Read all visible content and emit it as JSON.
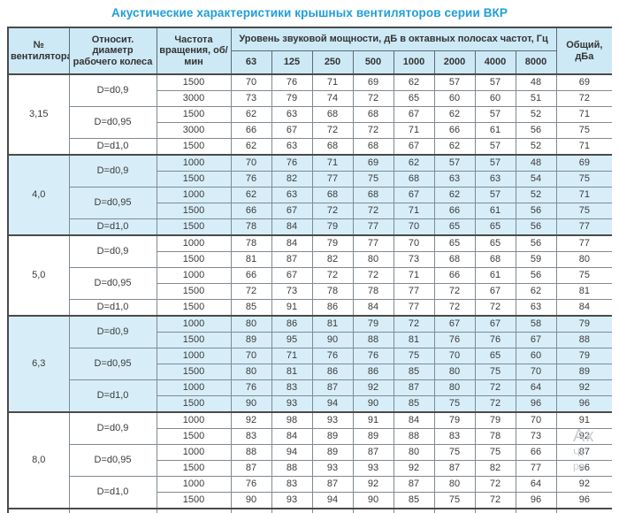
{
  "title": "Акустические характеристики крышных вентиляторов серии ВКР",
  "colors": {
    "title_blue": "#1f9ed9",
    "header_bg": "#cde9f6",
    "shaded_row_bg": "#d7eef9",
    "border_dark": "#4a4a4a",
    "border_light": "#7f8a91",
    "text": "#3b3b3b"
  },
  "table": {
    "headers": {
      "fan_number": "№ вентилятора",
      "diameter": "Относит. диаметр рабочего колеса",
      "speed": "Частота вращения, об/мин",
      "power_group": "Уровень звуковой мощности, дБ в октавных полосах частот, Гц",
      "frequencies": [
        "63",
        "125",
        "250",
        "500",
        "1000",
        "2000",
        "4000",
        "8000"
      ],
      "total": "Общий, дБа"
    },
    "groups": [
      {
        "fan": "3,15",
        "shaded": false,
        "rows": [
          {
            "diameter": "D=d0,9",
            "dspan": 2,
            "rpm": "1500",
            "levels": [
              "70",
              "76",
              "71",
              "69",
              "62",
              "57",
              "57",
              "48"
            ],
            "total": "69"
          },
          {
            "rpm": "3000",
            "levels": [
              "73",
              "79",
              "74",
              "72",
              "65",
              "60",
              "60",
              "51"
            ],
            "total": "72"
          },
          {
            "diameter": "D=d0,95",
            "dspan": 2,
            "rpm": "1500",
            "levels": [
              "62",
              "63",
              "68",
              "68",
              "67",
              "62",
              "57",
              "52"
            ],
            "total": "71"
          },
          {
            "rpm": "3000",
            "levels": [
              "66",
              "67",
              "72",
              "72",
              "71",
              "66",
              "61",
              "56"
            ],
            "total": "75"
          },
          {
            "diameter": "D=d1,0",
            "dspan": 1,
            "rpm": "1500",
            "levels": [
              "62",
              "63",
              "68",
              "68",
              "67",
              "62",
              "57",
              "52"
            ],
            "total": "71"
          }
        ]
      },
      {
        "fan": "4,0",
        "shaded": true,
        "rows": [
          {
            "diameter": "D=d0,9",
            "dspan": 2,
            "rpm": "1000",
            "levels": [
              "70",
              "76",
              "71",
              "69",
              "62",
              "57",
              "57",
              "48"
            ],
            "total": "69"
          },
          {
            "rpm": "1500",
            "levels": [
              "76",
              "82",
              "77",
              "75",
              "68",
              "63",
              "63",
              "54"
            ],
            "total": "75"
          },
          {
            "diameter": "D=d0,95",
            "dspan": 2,
            "rpm": "1000",
            "levels": [
              "62",
              "63",
              "68",
              "68",
              "67",
              "62",
              "57",
              "52"
            ],
            "total": "71"
          },
          {
            "rpm": "1500",
            "levels": [
              "66",
              "67",
              "72",
              "72",
              "71",
              "66",
              "61",
              "56"
            ],
            "total": "75"
          },
          {
            "diameter": "D=d1,0",
            "dspan": 1,
            "rpm": "1500",
            "levels": [
              "78",
              "84",
              "79",
              "77",
              "70",
              "65",
              "65",
              "56"
            ],
            "total": "77"
          }
        ]
      },
      {
        "fan": "5,0",
        "shaded": false,
        "rows": [
          {
            "diameter": "D=d0,9",
            "dspan": 2,
            "rpm": "1000",
            "levels": [
              "78",
              "84",
              "79",
              "77",
              "70",
              "65",
              "65",
              "56"
            ],
            "total": "77"
          },
          {
            "rpm": "1500",
            "levels": [
              "81",
              "87",
              "82",
              "80",
              "73",
              "68",
              "68",
              "59"
            ],
            "total": "80"
          },
          {
            "diameter": "D=d0,95",
            "dspan": 2,
            "rpm": "1000",
            "levels": [
              "66",
              "67",
              "72",
              "72",
              "71",
              "66",
              "61",
              "56"
            ],
            "total": "75"
          },
          {
            "rpm": "1500",
            "levels": [
              "72",
              "73",
              "78",
              "78",
              "77",
              "72",
              "67",
              "62"
            ],
            "total": "81"
          },
          {
            "diameter": "D=d1,0",
            "dspan": 1,
            "rpm": "1500",
            "levels": [
              "85",
              "91",
              "86",
              "84",
              "77",
              "72",
              "72",
              "63"
            ],
            "total": "84"
          }
        ]
      },
      {
        "fan": "6,3",
        "shaded": true,
        "rows": [
          {
            "diameter": "D=d0,9",
            "dspan": 2,
            "rpm": "1000",
            "levels": [
              "80",
              "86",
              "81",
              "79",
              "72",
              "67",
              "67",
              "58"
            ],
            "total": "79"
          },
          {
            "rpm": "1500",
            "levels": [
              "89",
              "95",
              "90",
              "88",
              "81",
              "76",
              "76",
              "67"
            ],
            "total": "88"
          },
          {
            "diameter": "D=d0,95",
            "dspan": 2,
            "rpm": "1000",
            "levels": [
              "70",
              "71",
              "76",
              "76",
              "75",
              "70",
              "65",
              "60"
            ],
            "total": "79"
          },
          {
            "rpm": "1500",
            "levels": [
              "80",
              "81",
              "86",
              "86",
              "85",
              "80",
              "75",
              "70"
            ],
            "total": "89"
          },
          {
            "diameter": "D=d1,0",
            "dspan": 2,
            "rpm": "1000",
            "levels": [
              "76",
              "83",
              "87",
              "92",
              "87",
              "80",
              "72",
              "64"
            ],
            "total": "92"
          },
          {
            "rpm": "1500",
            "levels": [
              "90",
              "93",
              "94",
              "90",
              "85",
              "75",
              "72",
              "96"
            ],
            "total": "96"
          }
        ]
      },
      {
        "fan": "8,0",
        "shaded": false,
        "rows": [
          {
            "diameter": "D=d0,9",
            "dspan": 2,
            "rpm": "1000",
            "levels": [
              "92",
              "98",
              "93",
              "91",
              "84",
              "79",
              "79",
              "70"
            ],
            "total": "91"
          },
          {
            "rpm": "1500",
            "levels": [
              "83",
              "84",
              "89",
              "89",
              "88",
              "83",
              "78",
              "73"
            ],
            "total": "92"
          },
          {
            "diameter": "D=d0,95",
            "dspan": 2,
            "rpm": "1000",
            "levels": [
              "88",
              "94",
              "89",
              "87",
              "80",
              "75",
              "75",
              "66"
            ],
            "total": "87"
          },
          {
            "rpm": "1500",
            "levels": [
              "87",
              "88",
              "93",
              "93",
              "92",
              "87",
              "82",
              "77"
            ],
            "total": "96"
          },
          {
            "diameter": "D=d1,0",
            "dspan": 2,
            "rpm": "1000",
            "levels": [
              "76",
              "83",
              "87",
              "92",
              "87",
              "80",
              "72",
              "64"
            ],
            "total": "92"
          },
          {
            "rpm": "1500",
            "levels": [
              "90",
              "93",
              "94",
              "90",
              "85",
              "75",
              "72",
              "96"
            ],
            "total": "96"
          }
        ]
      }
    ]
  },
  "watermark": {
    "line1": "Ак",
    "line2": "Чт",
    "line3": "ра"
  }
}
